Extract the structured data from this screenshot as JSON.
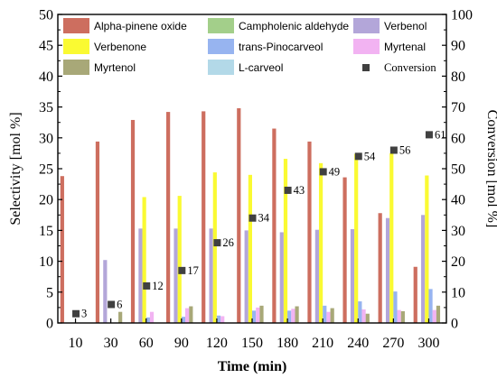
{
  "chart_data": {
    "type": "bar",
    "xlabel": "Time (min)",
    "ylabel": "Selectivity [mol %]",
    "y2label": "Conversion [mol %]",
    "ylim": [
      0,
      50
    ],
    "y2lim": [
      0,
      100
    ],
    "yticks": [
      "0",
      "5",
      "10",
      "15",
      "20",
      "25",
      "30",
      "35",
      "40",
      "45",
      "50"
    ],
    "y2ticks": [
      "0",
      "10",
      "20",
      "30",
      "40",
      "50",
      "60",
      "70",
      "80",
      "90",
      "100"
    ],
    "categories": [
      "10",
      "30",
      "60",
      "90",
      "120",
      "150",
      "180",
      "210",
      "240",
      "270",
      "300"
    ],
    "series": [
      {
        "name": "Alpha-pinene oxide",
        "color": "#cd6e5f",
        "values": [
          23.8,
          29.4,
          32.9,
          34.2,
          34.3,
          34.8,
          31.5,
          29.4,
          23.6,
          17.8,
          9.1
        ]
      },
      {
        "name": "Campholenic aldehyde",
        "color": "#a3cf8a",
        "values": [
          0,
          0,
          0,
          0,
          0,
          0,
          0,
          0,
          0,
          0,
          0
        ]
      },
      {
        "name": "Verbenol",
        "color": "#b3a6d9",
        "values": [
          0,
          10.2,
          15.3,
          15.3,
          15.3,
          15.0,
          14.7,
          15.1,
          15.2,
          17.0,
          17.5
        ]
      },
      {
        "name": "Verbenone",
        "color": "#fafa32",
        "values": [
          0,
          0,
          20.4,
          20.6,
          24.4,
          24.0,
          26.6,
          25.9,
          27.4,
          27.5,
          23.9
        ]
      },
      {
        "name": "trans-Pinocarveol",
        "color": "#97b4f0",
        "values": [
          0,
          0,
          0.9,
          1.0,
          1.2,
          2.0,
          2.0,
          2.8,
          3.5,
          5.1,
          5.5
        ]
      },
      {
        "name": "Myrtenal",
        "color": "#f2b3f2",
        "values": [
          0,
          0,
          1.8,
          2.4,
          1.1,
          2.5,
          2.3,
          1.8,
          2.2,
          2.1,
          2.1
        ]
      },
      {
        "name": "Myrtenol",
        "color": "#a8a878",
        "values": [
          0,
          1.8,
          0,
          2.7,
          0,
          2.8,
          2.7,
          2.4,
          1.5,
          1.9,
          2.8
        ]
      },
      {
        "name": "L-carveol",
        "color": "#b3d9e8",
        "values": [
          0,
          0,
          0,
          0,
          0,
          0,
          0,
          0,
          0,
          0,
          0
        ]
      }
    ],
    "conversion": {
      "name": "Conversion",
      "color": "#404040",
      "values": [
        3,
        6,
        12,
        17,
        26,
        34,
        43,
        49,
        54,
        56,
        61
      ],
      "labels": [
        "3",
        "6",
        "12",
        "17",
        "26",
        "34",
        "43",
        "49",
        "54",
        "56",
        "61"
      ]
    },
    "legend_position": "top",
    "grid": false
  }
}
